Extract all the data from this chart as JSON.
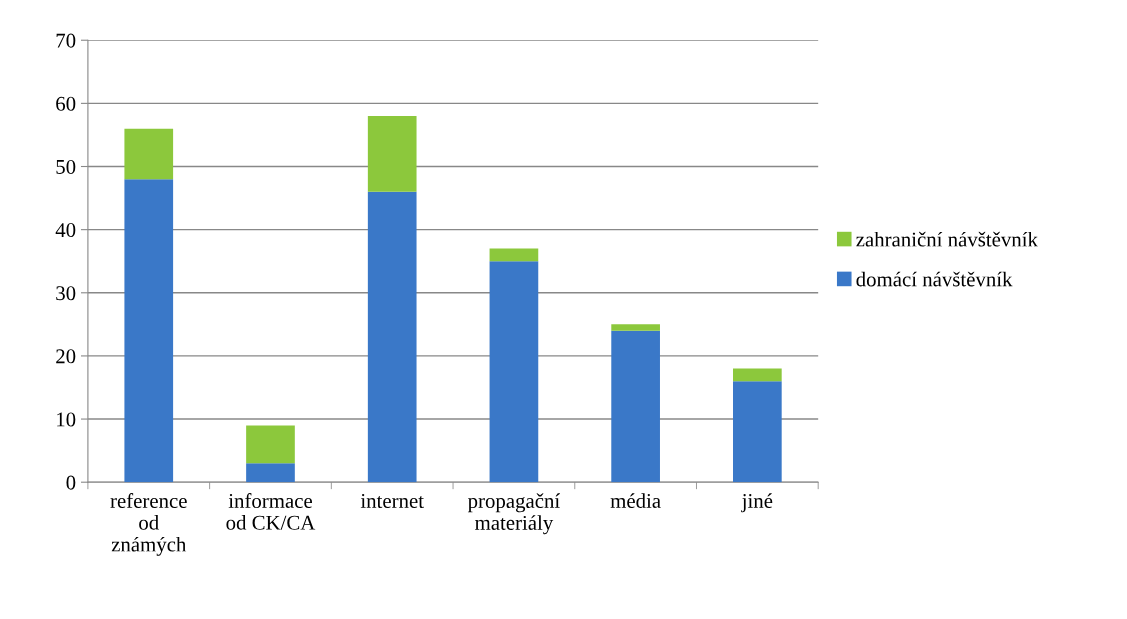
{
  "chart_data": {
    "type": "bar",
    "stacked": true,
    "categories": [
      "reference\nod\nznámých",
      "informace\nod CK/CA",
      "internet",
      "propagační\nmateriály",
      "média",
      "jiné"
    ],
    "series": [
      {
        "name": "domácí návštěvník",
        "color": "#3a78c8",
        "values": [
          48,
          3,
          46,
          35,
          24,
          16
        ]
      },
      {
        "name": "zahraniční návštěvník",
        "color": "#8cc83c",
        "values": [
          8,
          6,
          12,
          2,
          1,
          2
        ]
      }
    ],
    "ylim": [
      0,
      70
    ],
    "yticks": [
      0,
      10,
      20,
      30,
      40,
      50,
      60,
      70
    ],
    "grid": "y",
    "legend": "right"
  }
}
